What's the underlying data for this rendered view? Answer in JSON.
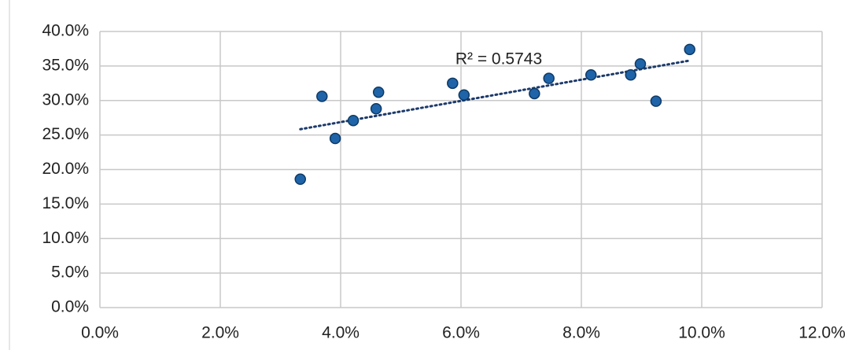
{
  "chart_data": {
    "type": "scatter",
    "annotation": "R² = 0.5743",
    "x": [
      3.33,
      3.69,
      3.91,
      4.21,
      4.59,
      4.63,
      5.86,
      6.05,
      7.22,
      7.46,
      8.16,
      8.82,
      8.98,
      9.24,
      9.8
    ],
    "values": [
      18.6,
      30.6,
      24.5,
      27.1,
      28.8,
      31.2,
      32.5,
      30.8,
      31.0,
      33.2,
      33.7,
      33.7,
      35.3,
      29.9,
      37.4
    ],
    "color": "#1f64a8",
    "trendline": true,
    "trendline_color": "#1c3a6b",
    "grid": true,
    "xlim": [
      0,
      12
    ],
    "ylim": [
      0,
      40
    ],
    "xticks": [
      {
        "value": 0,
        "label": "0.0%"
      },
      {
        "value": 2,
        "label": "2.0%"
      },
      {
        "value": 4,
        "label": "4.0%"
      },
      {
        "value": 6,
        "label": "6.0%"
      },
      {
        "value": 8,
        "label": "8.0%"
      },
      {
        "value": 10,
        "label": "10.0%"
      },
      {
        "value": 12,
        "label": "12.0%"
      }
    ],
    "yticks": [
      {
        "value": 0,
        "label": "0.0%"
      },
      {
        "value": 5,
        "label": "5.0%"
      },
      {
        "value": 10,
        "label": "10.0%"
      },
      {
        "value": 15,
        "label": "15.0%"
      },
      {
        "value": 20,
        "label": "20.0%"
      },
      {
        "value": 25,
        "label": "25.0%"
      },
      {
        "value": 30,
        "label": "30.0%"
      },
      {
        "value": 35,
        "label": "35.0%"
      },
      {
        "value": 40,
        "label": "40.0%"
      }
    ]
  }
}
